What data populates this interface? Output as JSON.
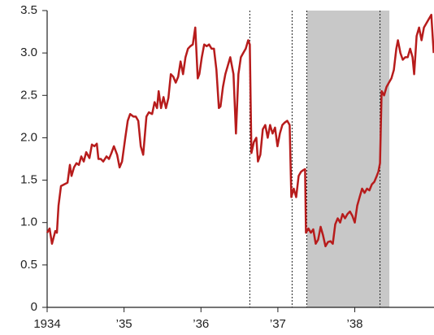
{
  "chart_data": {
    "type": "line",
    "x": [
      1934,
      1934.032,
      1934.063,
      1934.106,
      1934.127,
      1934.148,
      1934.18,
      1934.222,
      1934.265,
      1934.296,
      1934.317,
      1934.349,
      1934.381,
      1934.413,
      1934.444,
      1934.476,
      1934.508,
      1934.55,
      1934.582,
      1934.614,
      1934.646,
      1934.667,
      1934.698,
      1934.73,
      1934.772,
      1934.804,
      1934.836,
      1934.868,
      1934.91,
      1934.942,
      1934.974,
      1935.016,
      1935.048,
      1935.079,
      1935.122,
      1935.153,
      1935.185,
      1935.217,
      1935.249,
      1935.291,
      1935.323,
      1935.365,
      1935.397,
      1935.429,
      1935.45,
      1935.481,
      1935.513,
      1935.545,
      1935.577,
      1935.608,
      1935.64,
      1935.672,
      1935.704,
      1935.735,
      1935.767,
      1935.799,
      1935.831,
      1935.862,
      1935.894,
      1935.926,
      1935.958,
      1935.979,
      1936.011,
      1936.042,
      1936.074,
      1936.106,
      1936.138,
      1936.169,
      1936.201,
      1936.233,
      1936.254,
      1936.286,
      1936.317,
      1936.349,
      1936.381,
      1936.423,
      1936.455,
      1936.487,
      1936.519,
      1936.55,
      1936.582,
      1936.614,
      1936.635,
      1936.656,
      1936.688,
      1936.72,
      1936.741,
      1936.772,
      1936.804,
      1936.836,
      1936.868,
      1936.899,
      1936.931,
      1936.963,
      1936.995,
      1937.026,
      1937.058,
      1937.09,
      1937.122,
      1937.153,
      1937.175,
      1937.206,
      1937.238,
      1937.27,
      1937.302,
      1937.333,
      1937.354,
      1937.365,
      1937.397,
      1937.429,
      1937.46,
      1937.492,
      1937.524,
      1937.556,
      1937.587,
      1937.619,
      1937.651,
      1937.683,
      1937.714,
      1937.746,
      1937.778,
      1937.81,
      1937.841,
      1937.873,
      1937.905,
      1937.937,
      1937.968,
      1938,
      1938.032,
      1938.063,
      1938.095,
      1938.127,
      1938.159,
      1938.19,
      1938.222,
      1938.254,
      1938.286,
      1938.307,
      1938.328,
      1938.349,
      1938.381,
      1938.413,
      1938.444,
      1938.476,
      1938.508,
      1938.54,
      1938.561,
      1938.593,
      1938.624,
      1938.656,
      1938.688,
      1938.72,
      1938.751,
      1938.772,
      1938.804,
      1938.836,
      1938.868,
      1938.899,
      1938.931,
      1938.963,
      1938.995,
      1939.026
    ],
    "values": [
      0.88,
      0.93,
      0.75,
      0.9,
      0.88,
      1.2,
      1.43,
      1.45,
      1.47,
      1.68,
      1.55,
      1.65,
      1.7,
      1.68,
      1.78,
      1.72,
      1.83,
      1.76,
      1.92,
      1.9,
      1.93,
      1.75,
      1.75,
      1.72,
      1.78,
      1.75,
      1.82,
      1.9,
      1.8,
      1.65,
      1.72,
      2.0,
      2.2,
      2.28,
      2.25,
      2.25,
      2.2,
      1.9,
      1.8,
      2.25,
      2.3,
      2.28,
      2.42,
      2.35,
      2.55,
      2.35,
      2.48,
      2.35,
      2.47,
      2.75,
      2.72,
      2.65,
      2.72,
      2.9,
      2.75,
      2.95,
      3.05,
      3.08,
      3.1,
      3.3,
      2.7,
      2.75,
      2.95,
      3.1,
      3.08,
      3.1,
      3.05,
      3.05,
      2.8,
      2.35,
      2.37,
      2.6,
      2.75,
      2.85,
      2.95,
      2.75,
      2.05,
      2.75,
      2.95,
      3.0,
      3.05,
      3.15,
      3.1,
      1.82,
      1.95,
      2.0,
      1.72,
      1.8,
      2.1,
      2.15,
      2.0,
      2.15,
      2.05,
      2.12,
      1.9,
      2.05,
      2.15,
      2.18,
      2.2,
      2.15,
      1.3,
      1.4,
      1.3,
      1.55,
      1.6,
      1.62,
      1.63,
      0.88,
      0.93,
      0.88,
      0.92,
      0.75,
      0.8,
      0.95,
      0.85,
      0.72,
      0.77,
      0.78,
      0.75,
      0.98,
      1.05,
      1.0,
      1.1,
      1.05,
      1.1,
      1.13,
      1.08,
      1.0,
      1.2,
      1.3,
      1.4,
      1.35,
      1.4,
      1.38,
      1.45,
      1.48,
      1.55,
      1.6,
      1.7,
      2.55,
      2.5,
      2.6,
      2.65,
      2.7,
      2.8,
      3.05,
      3.15,
      3.0,
      2.92,
      2.95,
      2.95,
      3.05,
      2.95,
      2.75,
      3.2,
      3.3,
      3.15,
      3.3,
      3.35,
      3.4,
      3.45,
      3.0
    ],
    "color": "#b71c1c",
    "xlim": [
      1934,
      1939.03
    ],
    "xticks": [
      1934,
      {
        "value": 1935,
        "label": "’35"
      },
      {
        "value": 1936,
        "label": "’36"
      },
      {
        "value": 1937,
        "label": "’37"
      },
      {
        "value": 1938,
        "label": "’38"
      }
    ],
    "ylim": [
      0,
      3.5
    ],
    "yticks": [
      0,
      0.5,
      {
        "value": 1,
        "label": "1.0"
      },
      1.5,
      {
        "value": 2,
        "label": "2.0"
      },
      2.5,
      {
        "value": 3,
        "label": "3.0"
      },
      3.5
    ],
    "shaded_regions": [
      [
        1937.38,
        1938.45
      ]
    ],
    "vlines": [
      1936.635,
      1937.185,
      1937.376,
      1938.328
    ]
  }
}
